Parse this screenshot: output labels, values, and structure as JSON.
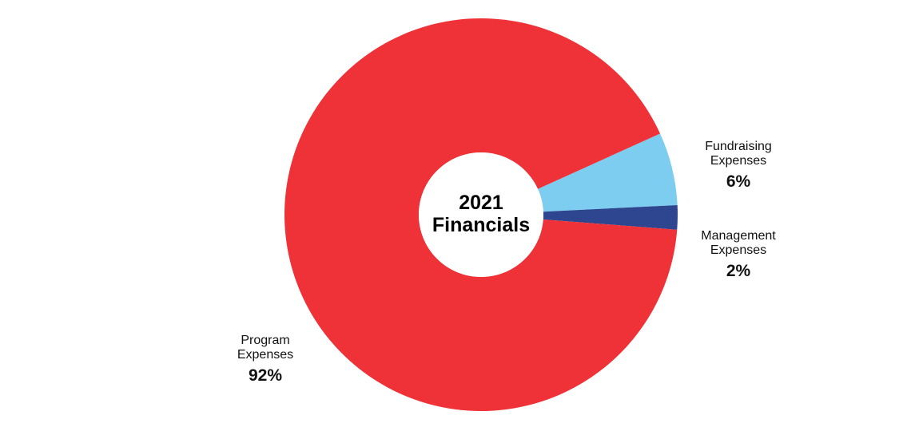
{
  "chart_data": {
    "type": "pie",
    "donut": true,
    "center_title_line1": "2021",
    "center_title_line2": "Financials",
    "slices": [
      {
        "name_line1": "Program",
        "name_line2": "Expenses",
        "value": 92,
        "value_label": "92%",
        "color": "#ee3237"
      },
      {
        "name_line1": "Fundraising",
        "name_line2": "Expenses",
        "value": 6,
        "value_label": "6%",
        "color": "#7dcdf0"
      },
      {
        "name_line1": "Management",
        "name_line2": "Expenses",
        "value": 2,
        "value_label": "2%",
        "color": "#2e4690"
      }
    ]
  }
}
